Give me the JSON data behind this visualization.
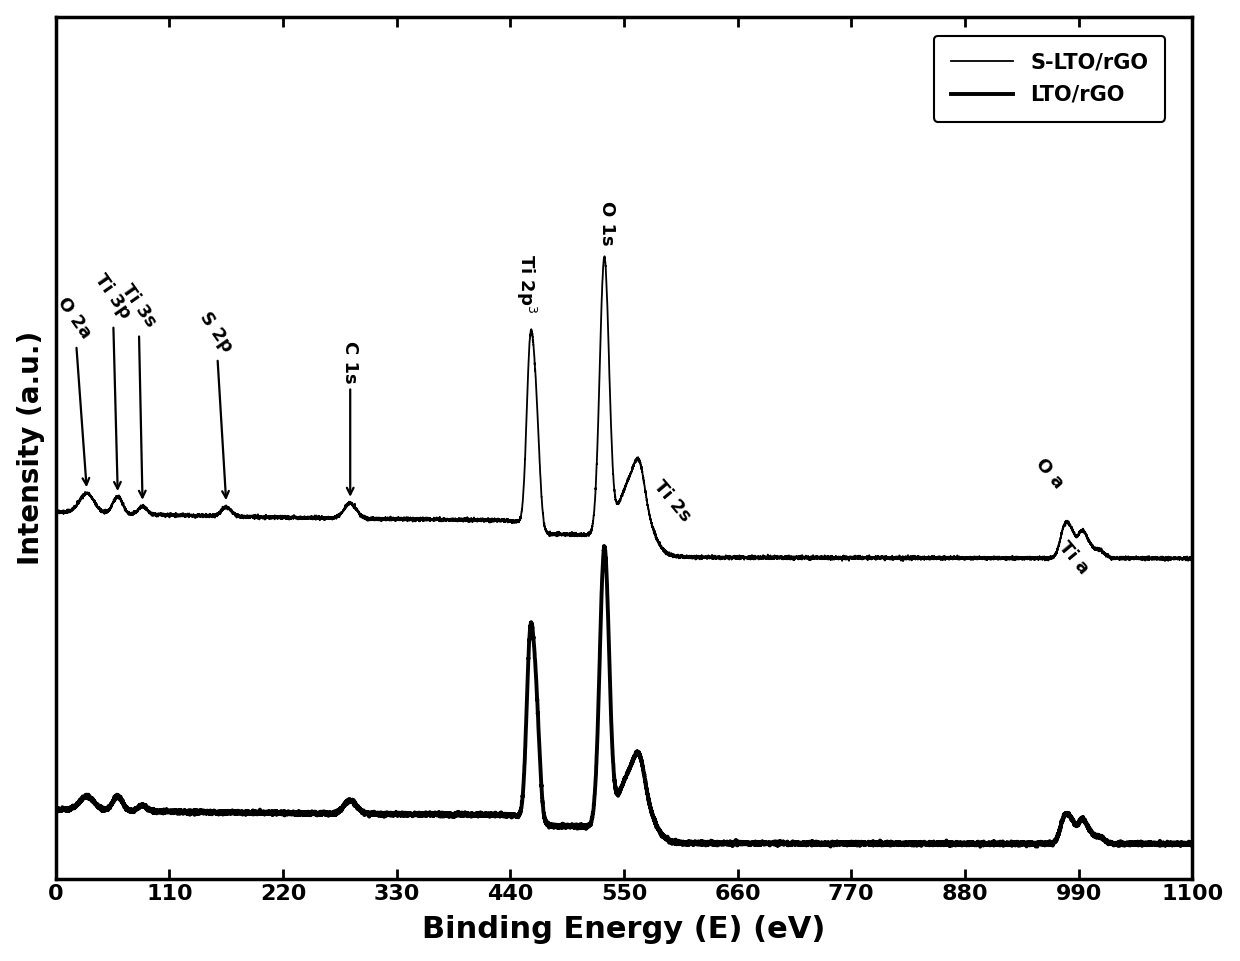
{
  "xlabel": "Binding Energy (E) (eV)",
  "ylabel": "Intensity (a.u.)",
  "xlim": [
    0,
    1100
  ],
  "xticks": [
    0,
    110,
    220,
    330,
    440,
    550,
    660,
    770,
    880,
    990,
    1100
  ],
  "background_color": "#ffffff",
  "legend_labels": [
    "S-LTO/rGO",
    "LTO/rGO"
  ],
  "lw_slto": 1.3,
  "lw_lto": 2.8,
  "fontsize_ann": 13,
  "fontsize_label": 22,
  "fontsize_ylabel": 20,
  "fontsize_tick": 16,
  "fontsize_legend": 15
}
